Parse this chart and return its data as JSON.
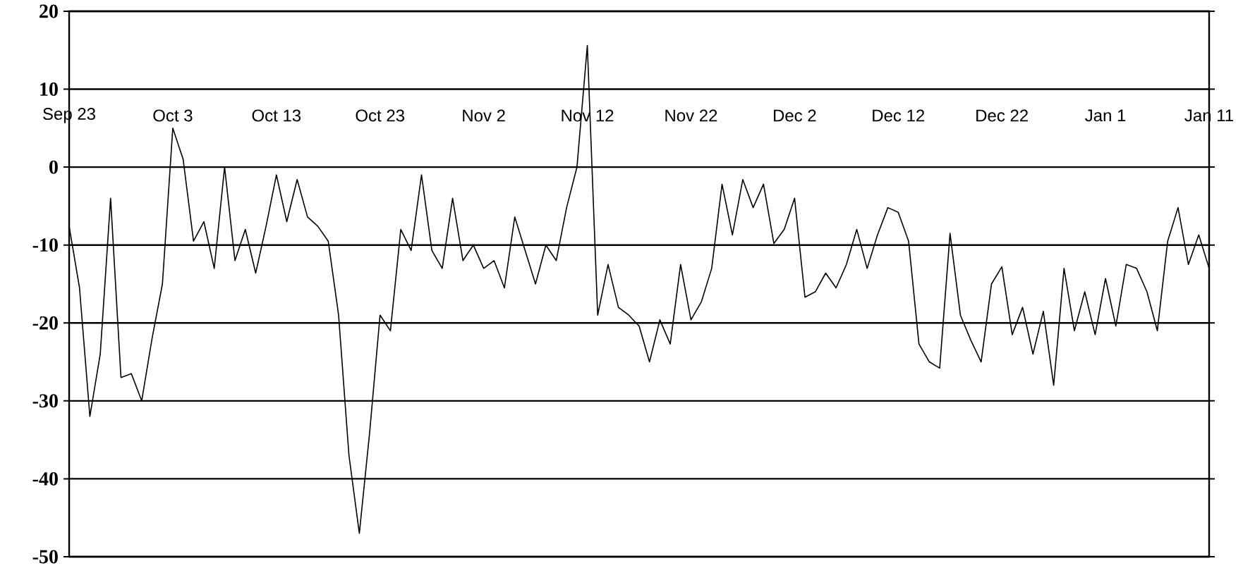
{
  "chart_data": {
    "type": "line",
    "categories": [
      "Sep 23",
      null,
      null,
      null,
      null,
      null,
      null,
      null,
      null,
      null,
      "Oct 3",
      null,
      null,
      null,
      null,
      null,
      null,
      null,
      null,
      null,
      "Oct 13",
      null,
      null,
      null,
      null,
      null,
      null,
      null,
      null,
      null,
      "Oct 23",
      null,
      null,
      null,
      null,
      null,
      null,
      null,
      null,
      null,
      "Nov 2",
      null,
      null,
      null,
      null,
      null,
      null,
      null,
      null,
      null,
      "Nov 12",
      null,
      null,
      null,
      null,
      null,
      null,
      null,
      null,
      null,
      "Nov 22",
      null,
      null,
      null,
      null,
      null,
      null,
      null,
      null,
      null,
      "Dec 2",
      null,
      null,
      null,
      null,
      null,
      null,
      null,
      null,
      null,
      "Dec 12",
      null,
      null,
      null,
      null,
      null,
      null,
      null,
      null,
      null,
      "Dec 22",
      null,
      null,
      null,
      null,
      null,
      null,
      null,
      null,
      null,
      "Jan 1",
      null,
      null,
      null,
      null,
      null,
      null,
      null,
      null,
      null,
      "Jan 11"
    ],
    "values": [
      -7.6,
      -15.5,
      -32,
      -24,
      -4,
      -27,
      -26.5,
      -30,
      -22,
      -15,
      5,
      1,
      -9.5,
      -7,
      -13,
      0,
      -12,
      -8,
      -13.6,
      -7.6,
      -1,
      -7,
      -1.6,
      -6.4,
      -7.6,
      -9.5,
      -19,
      -37,
      -47,
      -34,
      -19,
      -21,
      -8,
      -10.7,
      -1,
      -10.7,
      -13,
      -4,
      -12,
      -10,
      -13,
      -12,
      -15.5,
      -6.4,
      -10.7,
      -15,
      -10,
      -12,
      -5.2,
      0,
      15.6,
      -19,
      -12.5,
      -18,
      -19,
      -20.4,
      -25,
      -19.6,
      -22.7,
      -12.5,
      -19.6,
      -17.3,
      -13,
      -2.2,
      -8.7,
      -1.6,
      -5.2,
      -2.2,
      -9.8,
      -8,
      -4,
      -16.7,
      -16,
      -13.6,
      -15.5,
      -12.5,
      -8,
      -13,
      -8.7,
      -5.2,
      -5.8,
      -9.5,
      -22.7,
      -25,
      -25.8,
      -8.5,
      -19,
      -22.2,
      -25,
      -15,
      -12.8,
      -21.5,
      -18,
      -24,
      -18.5,
      -28,
      -13,
      -21,
      -16,
      -21.5,
      -14.3,
      -20.4,
      -12.5,
      -13,
      -16,
      -21,
      -9.5,
      -5.2,
      -12.5,
      -8.7,
      -13
    ],
    "color": "#000000",
    "ylim": [
      -50,
      20
    ],
    "yticks": [
      -50,
      -40,
      -30,
      -20,
      -10,
      0,
      10,
      20
    ],
    "grid": "y"
  }
}
